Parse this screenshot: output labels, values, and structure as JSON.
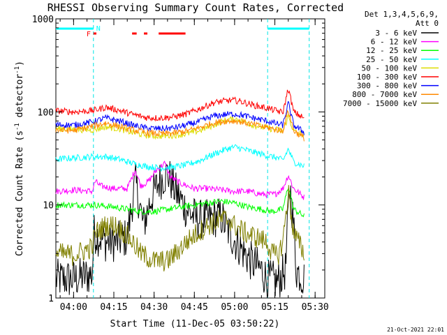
{
  "chart_data": {
    "type": "line",
    "title": "RHESSI Observing Summary Count Rates, Corrected",
    "xlabel": "Start Time (11-Dec-05 03:50:22)",
    "ylabel": "Corrected Count Rate (s",
    "ylabel_sup1": "-1",
    "ylabel_mid": " detector",
    "ylabel_sup2": "-1",
    "ylabel_end": ")",
    "y_scale": "log",
    "ylim": [
      1,
      1000
    ],
    "y_ticks": [
      {
        "value": 1,
        "label": "1"
      },
      {
        "value": 10,
        "label": "10"
      },
      {
        "value": 100,
        "label": "100"
      },
      {
        "value": 1000,
        "label": "1000"
      }
    ],
    "xlim_minutes": [
      -6.6,
      93.6
    ],
    "x_ticks": [
      {
        "minute": 0,
        "label": "04:00"
      },
      {
        "minute": 15,
        "label": "04:15"
      },
      {
        "minute": 30,
        "label": "04:30"
      },
      {
        "minute": 45,
        "label": "04:45"
      },
      {
        "minute": 60,
        "label": "05:00"
      },
      {
        "minute": 75,
        "label": "05:15"
      },
      {
        "minute": 90,
        "label": "05:30"
      }
    ],
    "legend_header": [
      "Det 1,3,4,5,6,9,",
      "Att 0"
    ],
    "legend_position": "right",
    "series": [
      {
        "name": "3 - 6 keV",
        "color": "#000000",
        "points": [
          [
            -6.6,
            1.6
          ],
          [
            0,
            1.6
          ],
          [
            7,
            1.8
          ],
          [
            7.5,
            5
          ],
          [
            12,
            4
          ],
          [
            16,
            4
          ],
          [
            20,
            4.5
          ],
          [
            23,
            18
          ],
          [
            26,
            6
          ],
          [
            29,
            12
          ],
          [
            32,
            18
          ],
          [
            35,
            22
          ],
          [
            38,
            14
          ],
          [
            42,
            9
          ],
          [
            46,
            7
          ],
          [
            50,
            7
          ],
          [
            55,
            7.5
          ],
          [
            58,
            5
          ],
          [
            62,
            3.5
          ],
          [
            66,
            2.5
          ],
          [
            70,
            2
          ],
          [
            72,
            1.6
          ],
          [
            76,
            1.5
          ],
          [
            79,
            2
          ],
          [
            80.5,
            17
          ],
          [
            82,
            6
          ],
          [
            83,
            2
          ],
          [
            86,
            1.6
          ]
        ]
      },
      {
        "name": "6 - 12 keV",
        "color": "#ff00ff",
        "points": [
          [
            -6.6,
            14
          ],
          [
            0,
            14.5
          ],
          [
            7,
            14
          ],
          [
            8,
            18
          ],
          [
            10,
            16
          ],
          [
            15,
            15
          ],
          [
            20,
            15
          ],
          [
            23,
            24
          ],
          [
            25,
            16
          ],
          [
            28,
            18
          ],
          [
            31,
            24
          ],
          [
            34,
            28
          ],
          [
            36,
            20
          ],
          [
            40,
            17
          ],
          [
            45,
            15
          ],
          [
            50,
            15
          ],
          [
            55,
            14.5
          ],
          [
            60,
            14
          ],
          [
            65,
            14
          ],
          [
            70,
            13
          ],
          [
            75,
            13
          ],
          [
            78,
            15
          ],
          [
            80,
            21
          ],
          [
            82,
            15
          ],
          [
            86,
            12
          ]
        ]
      },
      {
        "name": "12 - 25 keV",
        "color": "#00ff00",
        "points": [
          [
            -6.6,
            10
          ],
          [
            0,
            10
          ],
          [
            8,
            10
          ],
          [
            15,
            9.5
          ],
          [
            20,
            9
          ],
          [
            25,
            8.5
          ],
          [
            30,
            8.5
          ],
          [
            35,
            9
          ],
          [
            40,
            9.5
          ],
          [
            45,
            10
          ],
          [
            50,
            10.5
          ],
          [
            55,
            11
          ],
          [
            60,
            10.5
          ],
          [
            65,
            9.5
          ],
          [
            70,
            9
          ],
          [
            74,
            8.5
          ],
          [
            78,
            9
          ],
          [
            80,
            16
          ],
          [
            82,
            9
          ],
          [
            86,
            7.5
          ]
        ]
      },
      {
        "name": "25 - 50 keV",
        "color": "#00ffff",
        "points": [
          [
            -6.6,
            31
          ],
          [
            0,
            32
          ],
          [
            7,
            33
          ],
          [
            12,
            33
          ],
          [
            17,
            31
          ],
          [
            22,
            28
          ],
          [
            27,
            26
          ],
          [
            32,
            25
          ],
          [
            37,
            25.5
          ],
          [
            42,
            27
          ],
          [
            47,
            30
          ],
          [
            52,
            35
          ],
          [
            57,
            40
          ],
          [
            60,
            42
          ],
          [
            63,
            40
          ],
          [
            67,
            37
          ],
          [
            72,
            34
          ],
          [
            76,
            32
          ],
          [
            78,
            30
          ],
          [
            80,
            40
          ],
          [
            82,
            29
          ],
          [
            86,
            26
          ]
        ]
      },
      {
        "name": "50 - 100 keV",
        "color": "#dddd00",
        "points": [
          [
            -6.6,
            66
          ],
          [
            0,
            65
          ],
          [
            7,
            64
          ],
          [
            12,
            69
          ],
          [
            17,
            66
          ],
          [
            22,
            60
          ],
          [
            27,
            56
          ],
          [
            32,
            55
          ],
          [
            37,
            56
          ],
          [
            42,
            58
          ],
          [
            47,
            63
          ],
          [
            52,
            72
          ],
          [
            57,
            82
          ],
          [
            60,
            84
          ],
          [
            63,
            80
          ],
          [
            67,
            72
          ],
          [
            72,
            67
          ],
          [
            76,
            64
          ],
          [
            78,
            62
          ],
          [
            80,
            90
          ],
          [
            82,
            62
          ],
          [
            86,
            56
          ]
        ]
      },
      {
        "name": "100 - 300 keV",
        "color": "#ff0000",
        "points": [
          [
            -6.6,
            103
          ],
          [
            0,
            100
          ],
          [
            7,
            103
          ],
          [
            12,
            112
          ],
          [
            17,
            104
          ],
          [
            22,
            94
          ],
          [
            27,
            87
          ],
          [
            32,
            86
          ],
          [
            37,
            88
          ],
          [
            42,
            95
          ],
          [
            47,
            108
          ],
          [
            52,
            125
          ],
          [
            57,
            132
          ],
          [
            60,
            133
          ],
          [
            63,
            128
          ],
          [
            67,
            118
          ],
          [
            72,
            110
          ],
          [
            76,
            102
          ],
          [
            78,
            98
          ],
          [
            80,
            180
          ],
          [
            82,
            100
          ],
          [
            86,
            85
          ]
        ]
      },
      {
        "name": "300 - 800 keV",
        "color": "#0000ff",
        "points": [
          [
            -6.6,
            73
          ],
          [
            0,
            72
          ],
          [
            7,
            78
          ],
          [
            12,
            86
          ],
          [
            17,
            80
          ],
          [
            22,
            72
          ],
          [
            27,
            67
          ],
          [
            32,
            66
          ],
          [
            37,
            67
          ],
          [
            42,
            72
          ],
          [
            47,
            79
          ],
          [
            52,
            90
          ],
          [
            57,
            94
          ],
          [
            60,
            95
          ],
          [
            63,
            92
          ],
          [
            67,
            86
          ],
          [
            72,
            80
          ],
          [
            76,
            74
          ],
          [
            78,
            72
          ],
          [
            80,
            125
          ],
          [
            82,
            72
          ],
          [
            86,
            60
          ]
        ]
      },
      {
        "name": "800 - 7000 keV",
        "color": "#ff8800",
        "points": [
          [
            -6.6,
            64
          ],
          [
            0,
            63
          ],
          [
            7,
            70
          ],
          [
            12,
            76
          ],
          [
            17,
            70
          ],
          [
            22,
            64
          ],
          [
            27,
            60
          ],
          [
            32,
            58
          ],
          [
            37,
            59
          ],
          [
            42,
            62
          ],
          [
            47,
            68
          ],
          [
            52,
            76
          ],
          [
            57,
            80
          ],
          [
            60,
            80
          ],
          [
            63,
            78
          ],
          [
            67,
            73
          ],
          [
            72,
            68
          ],
          [
            76,
            64
          ],
          [
            78,
            63
          ],
          [
            80,
            105
          ],
          [
            82,
            63
          ],
          [
            86,
            52
          ]
        ]
      },
      {
        "name": "7000 - 15000 keV",
        "color": "#808000",
        "points": [
          [
            -6.6,
            3
          ],
          [
            0,
            2.9
          ],
          [
            7,
            3.5
          ],
          [
            8,
            5
          ],
          [
            12,
            6
          ],
          [
            16,
            6
          ],
          [
            19,
            5
          ],
          [
            22,
            4
          ],
          [
            25,
            3
          ],
          [
            30,
            2.5
          ],
          [
            35,
            2.5
          ],
          [
            38,
            3
          ],
          [
            42,
            4
          ],
          [
            46,
            5
          ],
          [
            50,
            6
          ],
          [
            55,
            7
          ],
          [
            58,
            7
          ],
          [
            60,
            6
          ],
          [
            64,
            5
          ],
          [
            68,
            4.5
          ],
          [
            72,
            4
          ],
          [
            74,
            3
          ],
          [
            76,
            2.8
          ],
          [
            78,
            4
          ],
          [
            80,
            14
          ],
          [
            82,
            5
          ],
          [
            86,
            3
          ]
        ]
      }
    ],
    "observing_flags": [
      {
        "label": "N",
        "color": "#00ffff",
        "start_minute": -6.6,
        "end_minute": 7.4,
        "label_minute": 9.2
      },
      {
        "label": "",
        "color": "#00ffff",
        "start_minute": 72.3,
        "end_minute": 87.8
      }
    ],
    "flare_flags": [
      {
        "label": "F",
        "color": "#ff0000",
        "label_minute": 5.6,
        "start_minute": 7.4,
        "end_minute": 8.5
      },
      {
        "label": "",
        "color": "#ff0000",
        "start_minute": 21.8,
        "end_minute": 23.5
      },
      {
        "label": "",
        "color": "#ff0000",
        "start_minute": 26.2,
        "end_minute": 27.5
      },
      {
        "label": "",
        "color": "#ff0000",
        "start_minute": 31.7,
        "end_minute": 41.7
      }
    ],
    "night_boundaries_minutes": [
      7.4,
      72.3,
      87.8
    ],
    "grid": false
  },
  "footer": {
    "timestamp": "21-Oct-2021 22:01"
  }
}
